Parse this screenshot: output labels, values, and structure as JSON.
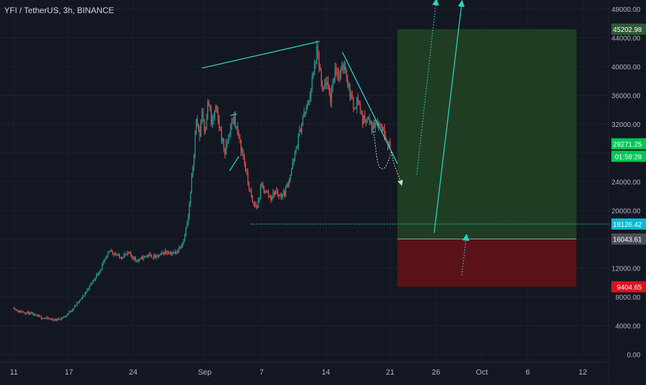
{
  "header": {
    "symbol": "YFI / TetherUS, 3h, BINANCE"
  },
  "colors": {
    "background": "#131722",
    "grid": "#1c2030",
    "up": "#26a69a",
    "down": "#ef5350",
    "drawing": "#2ad4c0",
    "profit_zone": "#1f3d23",
    "loss_zone": "#5a1218",
    "text": "#b2b5be"
  },
  "chart_data": {
    "type": "candlestick",
    "title": "YFI / TetherUS, 3h, BINANCE",
    "xlabel": "",
    "ylabel": "",
    "ylim": [
      -1000,
      50000
    ],
    "y_ticks": [
      "0.00",
      "4000.00",
      "8000.00",
      "12000.00",
      "16000.00",
      "20000.00",
      "24000.00",
      "28000.00",
      "32000.00",
      "36000.00",
      "40000.00",
      "44000.00",
      "48000.00"
    ],
    "x_ticks": [
      "11",
      "17",
      "24",
      "Sep",
      "7",
      "14",
      "21",
      "26",
      "Oct",
      "6",
      "12"
    ],
    "price_path": [
      {
        "d": 0.0,
        "p": 6500
      },
      {
        "d": 0.5,
        "p": 6000
      },
      {
        "d": 1.5,
        "p": 5800
      },
      {
        "d": 2.5,
        "p": 5300
      },
      {
        "d": 3.5,
        "p": 5000
      },
      {
        "d": 4.5,
        "p": 4800
      },
      {
        "d": 5.5,
        "p": 5200
      },
      {
        "d": 6.5,
        "p": 6500
      },
      {
        "d": 7.5,
        "p": 8000
      },
      {
        "d": 8.5,
        "p": 10000
      },
      {
        "d": 9.5,
        "p": 12000
      },
      {
        "d": 10.5,
        "p": 14500
      },
      {
        "d": 11.5,
        "p": 13500
      },
      {
        "d": 12.5,
        "p": 14000
      },
      {
        "d": 13.5,
        "p": 13000
      },
      {
        "d": 14.5,
        "p": 13800
      },
      {
        "d": 15.5,
        "p": 13500
      },
      {
        "d": 16.5,
        "p": 14300
      },
      {
        "d": 17.5,
        "p": 14000
      },
      {
        "d": 18.0,
        "p": 14800
      },
      {
        "d": 18.5,
        "p": 16000
      },
      {
        "d": 19.0,
        "p": 19000
      },
      {
        "d": 19.3,
        "p": 23000
      },
      {
        "d": 19.6,
        "p": 28000
      },
      {
        "d": 19.9,
        "p": 33000
      },
      {
        "d": 20.2,
        "p": 30000
      },
      {
        "d": 20.5,
        "p": 34000
      },
      {
        "d": 20.8,
        "p": 31000
      },
      {
        "d": 21.2,
        "p": 35500
      },
      {
        "d": 21.5,
        "p": 32000
      },
      {
        "d": 22.0,
        "p": 34000
      },
      {
        "d": 22.5,
        "p": 31000
      },
      {
        "d": 23.0,
        "p": 28000
      },
      {
        "d": 23.5,
        "p": 31000
      },
      {
        "d": 24.0,
        "p": 33000
      },
      {
        "d": 24.5,
        "p": 30000
      },
      {
        "d": 25.0,
        "p": 27500
      },
      {
        "d": 25.5,
        "p": 24000
      },
      {
        "d": 26.0,
        "p": 21000
      },
      {
        "d": 26.5,
        "p": 20500
      },
      {
        "d": 27.0,
        "p": 23500
      },
      {
        "d": 27.5,
        "p": 22500
      },
      {
        "d": 28.0,
        "p": 21800
      },
      {
        "d": 28.5,
        "p": 22700
      },
      {
        "d": 29.0,
        "p": 22000
      },
      {
        "d": 29.5,
        "p": 22500
      },
      {
        "d": 30.0,
        "p": 24500
      },
      {
        "d": 30.5,
        "p": 27000
      },
      {
        "d": 31.0,
        "p": 30000
      },
      {
        "d": 31.5,
        "p": 33000
      },
      {
        "d": 32.0,
        "p": 34500
      },
      {
        "d": 32.5,
        "p": 38000
      },
      {
        "d": 33.0,
        "p": 42000
      },
      {
        "d": 33.3,
        "p": 40000
      },
      {
        "d": 33.6,
        "p": 36000
      },
      {
        "d": 34.0,
        "p": 38000
      },
      {
        "d": 34.5,
        "p": 35500
      },
      {
        "d": 35.0,
        "p": 40000
      },
      {
        "d": 35.5,
        "p": 38500
      },
      {
        "d": 36.0,
        "p": 40500
      },
      {
        "d": 36.5,
        "p": 37000
      },
      {
        "d": 37.0,
        "p": 34500
      },
      {
        "d": 37.5,
        "p": 35500
      },
      {
        "d": 38.0,
        "p": 32500
      },
      {
        "d": 38.5,
        "p": 33000
      },
      {
        "d": 39.0,
        "p": 31500
      },
      {
        "d": 39.5,
        "p": 32500
      },
      {
        "d": 40.0,
        "p": 31800
      },
      {
        "d": 40.5,
        "p": 30500
      },
      {
        "d": 41.0,
        "p": 28500
      }
    ],
    "last_price": 29271.25,
    "countdown": "01:58:28",
    "levels": {
      "take_profit": 45202.98,
      "entry": 16043.61,
      "stop_loss": 9404.65,
      "support": 18126.42
    },
    "position": {
      "type": "long",
      "start_day": 41.8,
      "end_day": 61.3
    },
    "trendlines": [
      {
        "name": "upper-resistance-line",
        "from": [
          20.5,
          39800
        ],
        "to": [
          33.3,
          43500
        ]
      },
      {
        "name": "descending-resistance-line",
        "from": [
          35.8,
          42000
        ],
        "to": [
          41.8,
          26500
        ]
      },
      {
        "name": "flag-line",
        "from": [
          23.5,
          25500
        ],
        "to": [
          24.5,
          27500
        ]
      },
      {
        "name": "flag-top-line",
        "from": [
          23.6,
          33200
        ],
        "to": [
          24.3,
          33400
        ]
      },
      {
        "name": "bullish-projection-arrow",
        "from": [
          45.8,
          16900
        ],
        "to": [
          48.8,
          48800
        ]
      }
    ],
    "projection_paths": [
      {
        "name": "projected-dip-path",
        "points": [
          [
            39.2,
            31000
          ],
          [
            39.6,
            27000
          ],
          [
            40.2,
            25800
          ],
          [
            41.2,
            28000
          ],
          [
            42.2,
            23800
          ]
        ]
      },
      {
        "name": "alternate-rally-path",
        "points": [
          [
            43.9,
            25000
          ],
          [
            46.0,
            49000
          ]
        ]
      },
      {
        "name": "entry-rebound-path",
        "points": [
          [
            48.8,
            11000
          ],
          [
            49.3,
            16300
          ]
        ]
      }
    ],
    "grid": true
  }
}
